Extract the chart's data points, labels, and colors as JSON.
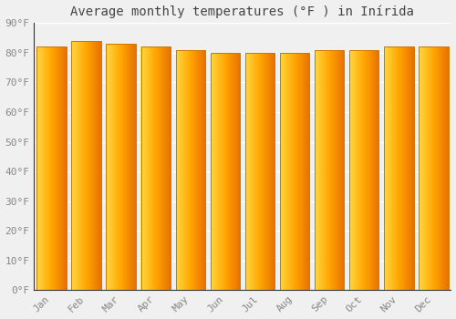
{
  "title": "Average monthly temperatures (°F ) in Inírida",
  "months": [
    "Jan",
    "Feb",
    "Mar",
    "Apr",
    "May",
    "Jun",
    "Jul",
    "Aug",
    "Sep",
    "Oct",
    "Nov",
    "Dec"
  ],
  "values": [
    82,
    84,
    83,
    82,
    81,
    80,
    80,
    80,
    81,
    81,
    82,
    82
  ],
  "ylim": [
    0,
    90
  ],
  "yticks": [
    0,
    10,
    20,
    30,
    40,
    50,
    60,
    70,
    80,
    90
  ],
  "ytick_labels": [
    "0°F",
    "10°F",
    "20°F",
    "30°F",
    "40°F",
    "50°F",
    "60°F",
    "70°F",
    "80°F",
    "90°F"
  ],
  "background_color": "#f0f0f0",
  "grid_color": "#ffffff",
  "bar_color_left": "#FFD740",
  "bar_color_mid": "#FFA500",
  "bar_color_right": "#FF8C00",
  "bar_edge_color": "#CC7700",
  "title_fontsize": 10,
  "tick_fontsize": 8,
  "font_family": "monospace",
  "bar_width": 0.85,
  "n_gradient_steps": 60
}
